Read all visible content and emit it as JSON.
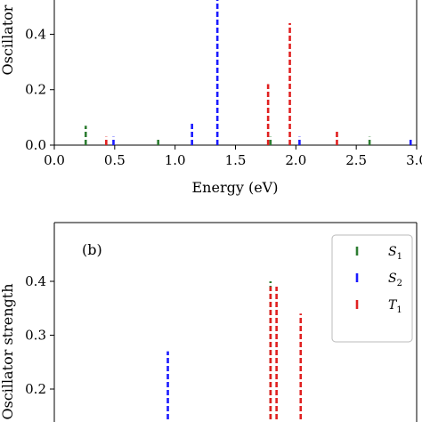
{
  "chart_data": [
    {
      "type": "bar",
      "panel": "a",
      "title": "",
      "xlabel": "Energy (eV)",
      "ylabel": "Oscillator",
      "xlim": [
        0.0,
        3.0
      ],
      "ylim": [
        0.0,
        0.53
      ],
      "xticks": [
        "0.0",
        "0.5",
        "1.0",
        "1.5",
        "2.0",
        "2.5",
        "3.0"
      ],
      "yticks": [
        "0.0",
        "0.2",
        "0.4"
      ],
      "series": [
        {
          "color": "#2e7d32",
          "points": [
            {
              "x": 0.26,
              "y": 0.07
            },
            {
              "x": 0.86,
              "y": 0.02
            },
            {
              "x": 1.79,
              "y": 0.03
            },
            {
              "x": 2.61,
              "y": 0.03
            }
          ]
        },
        {
          "color": "#1a1aff",
          "points": [
            {
              "x": 0.49,
              "y": 0.03
            },
            {
              "x": 1.14,
              "y": 0.08
            },
            {
              "x": 1.35,
              "y": 0.53
            },
            {
              "x": 2.03,
              "y": 0.03
            },
            {
              "x": 2.95,
              "y": 0.02
            }
          ]
        },
        {
          "color": "#e02020",
          "points": [
            {
              "x": 0.43,
              "y": 0.03
            },
            {
              "x": 1.77,
              "y": 0.22
            },
            {
              "x": 1.95,
              "y": 0.44
            },
            {
              "x": 2.34,
              "y": 0.05
            }
          ]
        }
      ]
    },
    {
      "type": "bar",
      "panel": "b",
      "panel_label": "(b)",
      "title": "",
      "xlabel": "",
      "ylabel": "Oscillator strength",
      "xlim": [
        0.0,
        3.0
      ],
      "ylim": [
        0.15,
        0.49
      ],
      "yticks": [
        "0.2",
        "0.3",
        "0.4"
      ],
      "legend": {
        "placement": "top-right",
        "entries": [
          "S",
          "S",
          "T"
        ],
        "subscripts": [
          "1",
          "2",
          "1"
        ]
      },
      "series": [
        {
          "name": "S1",
          "color": "#2e7d32",
          "points": [
            {
              "x": 1.79,
              "y": 0.4
            }
          ]
        },
        {
          "name": "S2",
          "color": "#1a1aff",
          "points": [
            {
              "x": 0.94,
              "y": 0.27
            }
          ]
        },
        {
          "name": "T1",
          "color": "#e02020",
          "points": [
            {
              "x": 1.79,
              "y": 0.39
            },
            {
              "x": 1.84,
              "y": 0.39
            },
            {
              "x": 2.04,
              "y": 0.34
            }
          ]
        }
      ]
    }
  ]
}
